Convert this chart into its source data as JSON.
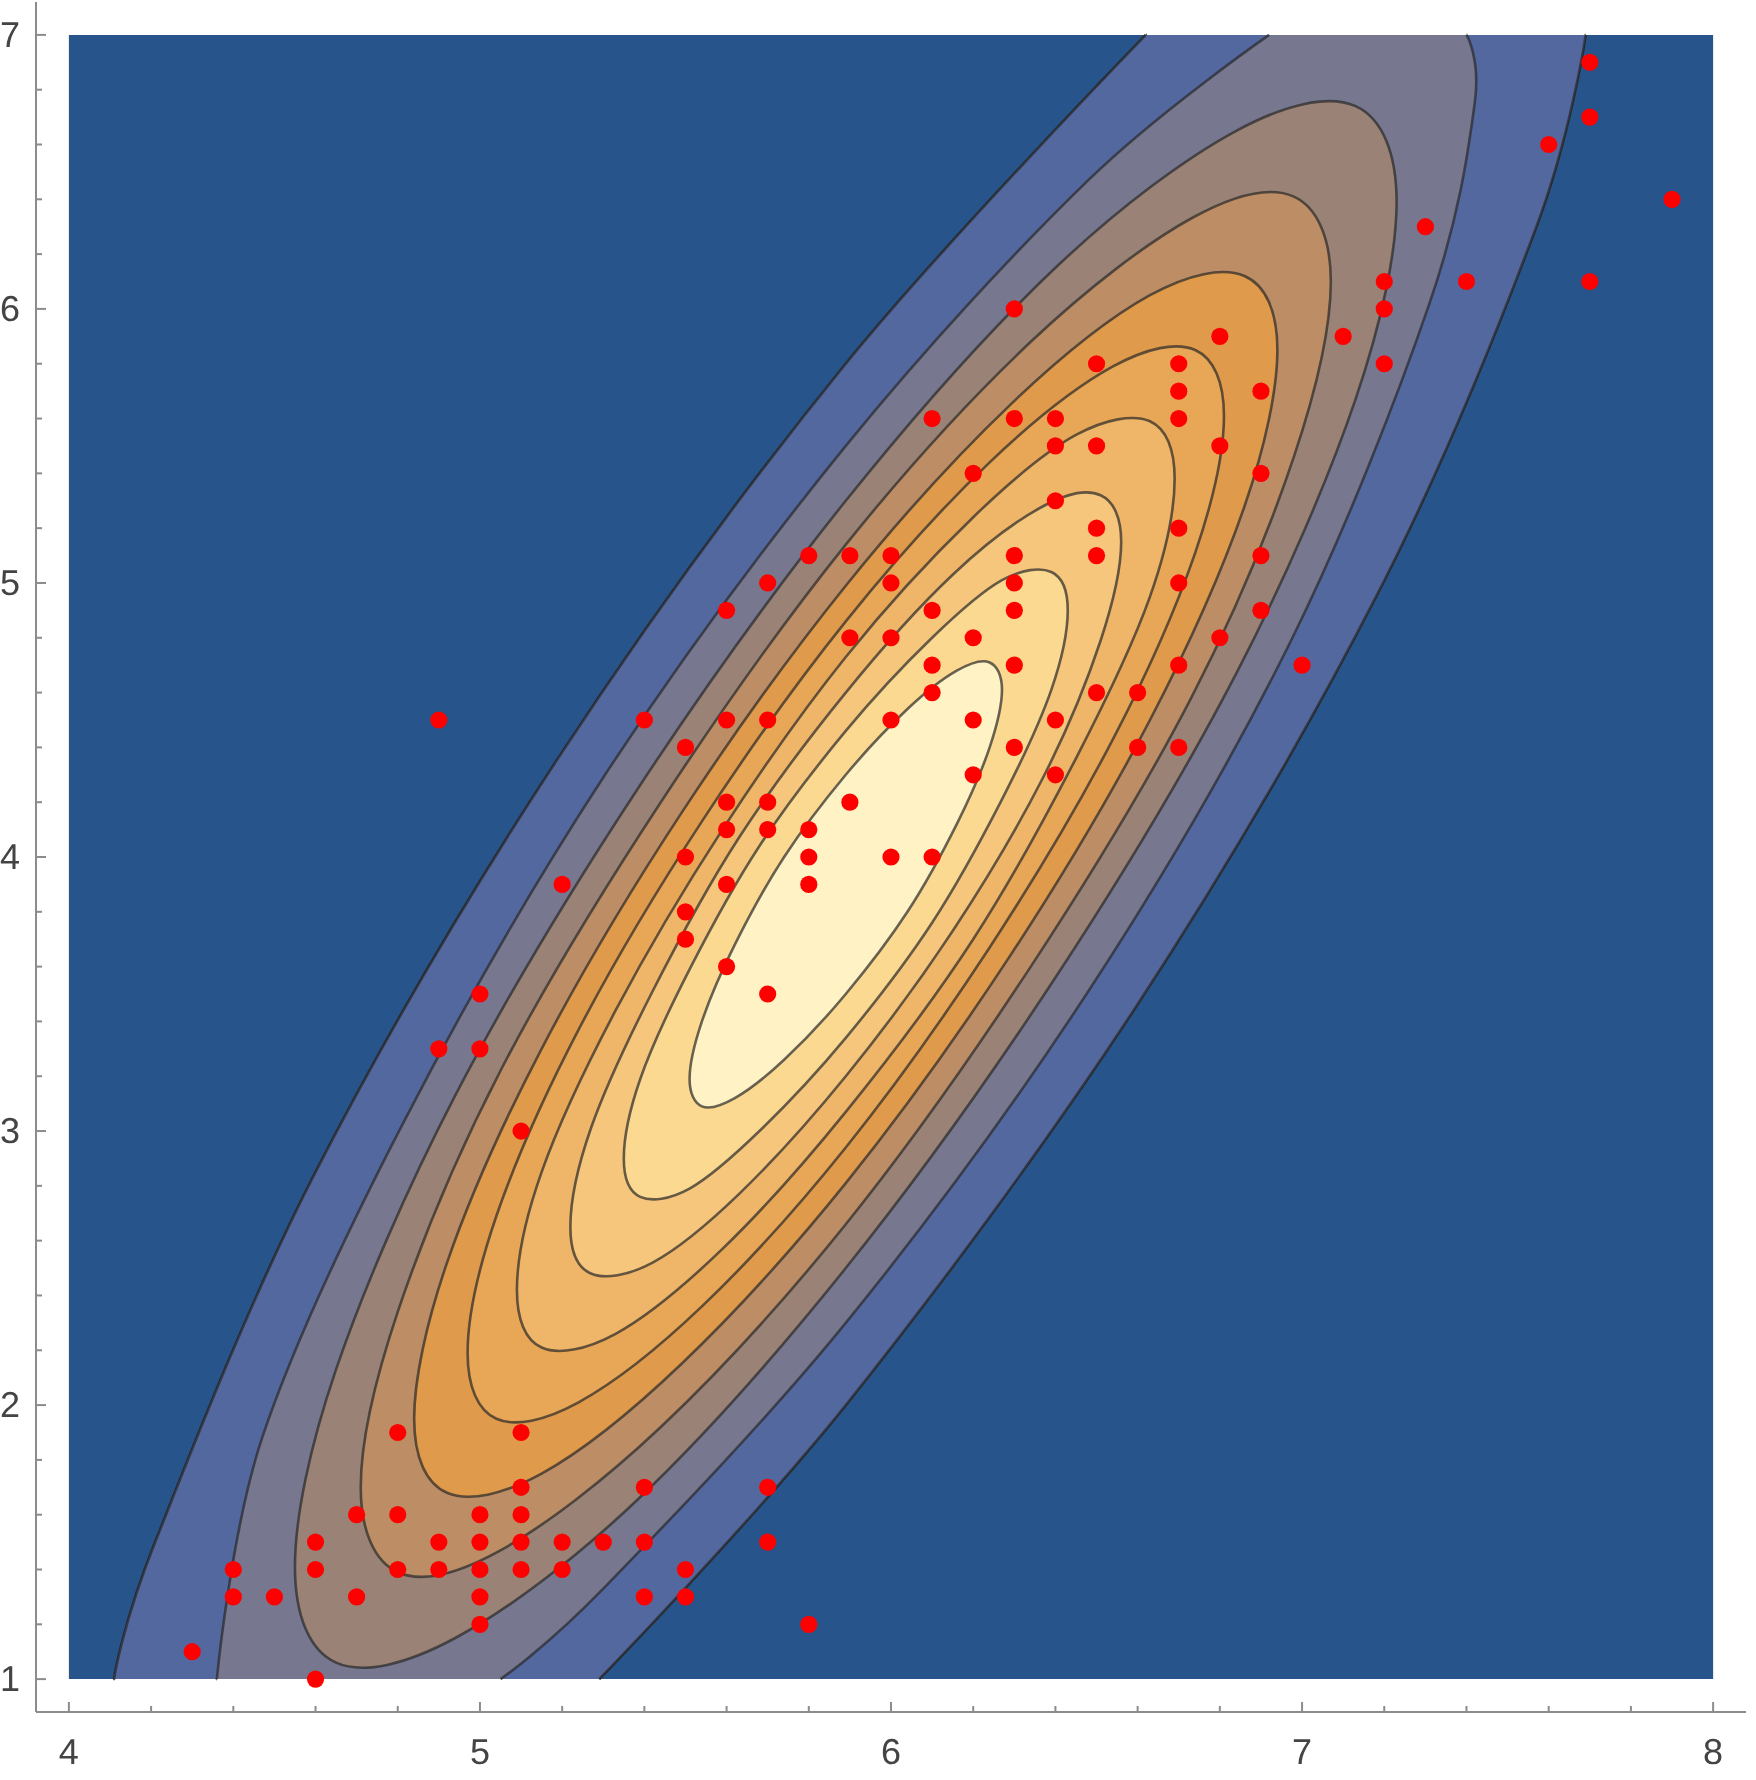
{
  "chart_data": {
    "type": "scatter",
    "xlim": [
      3.92,
      8.08
    ],
    "ylim": [
      0.88,
      7.12
    ],
    "xticks": [
      4,
      {
        "value": 4.2,
        "label": null
      },
      {
        "value": 4.4,
        "label": null
      },
      {
        "value": 4.6,
        "label": null
      },
      {
        "value": 4.8,
        "label": null
      },
      5,
      {
        "value": 5.2,
        "label": null
      },
      {
        "value": 5.4,
        "label": null
      },
      {
        "value": 5.6,
        "label": null
      },
      {
        "value": 5.8,
        "label": null
      },
      6,
      {
        "value": 6.2,
        "label": null
      },
      {
        "value": 6.4,
        "label": null
      },
      {
        "value": 6.6,
        "label": null
      },
      {
        "value": 6.8,
        "label": null
      },
      7,
      {
        "value": 7.2,
        "label": null
      },
      {
        "value": 7.4,
        "label": null
      },
      {
        "value": 7.6,
        "label": null
      },
      {
        "value": 7.8,
        "label": null
      },
      8
    ],
    "yticks": [
      1,
      {
        "value": 1.2,
        "label": null
      },
      {
        "value": 1.4,
        "label": null
      },
      {
        "value": 1.6,
        "label": null
      },
      {
        "value": 1.8,
        "label": null
      },
      2,
      {
        "value": 2.2,
        "label": null
      },
      {
        "value": 2.4,
        "label": null
      },
      {
        "value": 2.6,
        "label": null
      },
      {
        "value": 2.8,
        "label": null
      },
      3,
      {
        "value": 3.2,
        "label": null
      },
      {
        "value": 3.4,
        "label": null
      },
      {
        "value": 3.6,
        "label": null
      },
      {
        "value": 3.8,
        "label": null
      },
      4,
      {
        "value": 4.2,
        "label": null
      },
      {
        "value": 4.4,
        "label": null
      },
      {
        "value": 4.6,
        "label": null
      },
      {
        "value": 4.8,
        "label": null
      },
      5,
      {
        "value": 5.2,
        "label": null
      },
      {
        "value": 5.4,
        "label": null
      },
      {
        "value": 5.6,
        "label": null
      },
      {
        "value": 5.8,
        "label": null
      },
      6,
      {
        "value": 6.2,
        "label": null
      },
      {
        "value": 6.4,
        "label": null
      },
      {
        "value": 6.6,
        "label": null
      },
      {
        "value": 6.8,
        "label": null
      },
      7
    ],
    "series": [
      {
        "type": "area",
        "color": "#27548a",
        "x": [
          4,
          4,
          6.62,
          5.89,
          5.19,
          4.6,
          4.21,
          4.11
        ],
        "values": [
          1,
          7,
          7,
          5.8,
          4.36,
          2.85,
          1.5,
          1.0
        ]
      },
      {
        "type": "area",
        "color": "#27548a",
        "x": [
          5.29,
          8,
          8,
          7.69,
          7.57,
          7.18,
          6.59,
          5.89
        ],
        "values": [
          1,
          1,
          7,
          7,
          6.3,
          4.95,
          3.44,
          2.0
        ]
      },
      {
        "type": "area",
        "color": "#5468a0",
        "x": [
          7.57,
          7.69,
          6.62,
          5.89,
          5.19,
          4.6,
          4.21,
          4.11,
          5.29,
          5.89,
          6.59,
          7.18
        ],
        "values": [
          6.3,
          7.0,
          7.0,
          5.8,
          4.36,
          2.85,
          1.5,
          1.0,
          1.0,
          2.0,
          3.44,
          4.95
        ]
      },
      {
        "type": "area",
        "color": "#777790",
        "x": [
          7.42,
          7.4,
          6.92,
          6.48,
          5.89,
          5.3,
          4.81,
          4.47,
          4.36,
          5.05,
          5.3,
          5.89,
          6.48,
          6.97,
          7.31
        ],
        "values": [
          6.75,
          7.0,
          7.0,
          6.47,
          5.5,
          4.29,
          3.02,
          1.88,
          1.0,
          1.0,
          1.33,
          2.3,
          3.51,
          4.78,
          6.02
        ]
      },
      {
        "type": "area",
        "color": "#9a8376",
        "x": [
          7.23,
          7.13,
          6.84,
          6.4,
          5.89,
          5.38,
          4.94,
          4.65,
          4.55,
          4.65,
          4.94,
          5.38,
          5.89,
          6.4,
          6.84,
          7.13
        ],
        "values": [
          6.39,
          6.74,
          6.65,
          6.15,
          5.3,
          4.24,
          3.13,
          2.13,
          1.41,
          1.06,
          1.15,
          1.65,
          2.5,
          3.56,
          4.67,
          5.67
        ]
      },
      {
        "type": "area",
        "color": "#bd8e65",
        "x": [
          7.07,
          6.98,
          6.73,
          6.34,
          5.89,
          5.44,
          5.05,
          4.8,
          4.71,
          4.8,
          5.05,
          5.44,
          5.89,
          6.34,
          6.73,
          6.98
        ],
        "values": [
          6.1,
          6.41,
          6.33,
          5.88,
          5.14,
          4.2,
          3.22,
          2.34,
          1.7,
          1.39,
          1.47,
          1.92,
          2.66,
          3.6,
          4.58,
          5.46
        ]
      },
      {
        "type": "area",
        "color": "#e09a4b",
        "x": [
          6.94,
          6.86,
          6.63,
          6.29,
          5.89,
          5.49,
          5.15,
          4.92,
          4.84,
          4.92,
          5.15,
          5.49,
          5.89,
          6.29,
          6.63,
          6.86
        ],
        "values": [
          5.85,
          6.12,
          6.05,
          5.65,
          4.99,
          4.16,
          3.3,
          2.52,
          1.95,
          1.68,
          1.75,
          2.15,
          2.81,
          3.64,
          4.5,
          5.28
        ]
      },
      {
        "type": "area",
        "color": "#e8a657",
        "x": [
          6.81,
          6.74,
          6.54,
          6.24,
          5.89,
          5.54,
          5.24,
          5.04,
          4.97,
          5.04,
          5.24,
          5.54,
          5.89,
          6.24,
          6.54,
          6.74
        ],
        "values": [
          5.61,
          5.85,
          5.79,
          5.44,
          4.86,
          4.13,
          3.37,
          2.69,
          2.19,
          1.95,
          2.01,
          2.36,
          2.94,
          3.67,
          4.43,
          5.11
        ]
      },
      {
        "type": "area",
        "color": "#efb66a",
        "x": [
          6.69,
          6.63,
          6.45,
          6.2,
          5.89,
          5.59,
          5.33,
          5.15,
          5.09,
          5.15,
          5.33,
          5.59,
          5.89,
          6.2,
          6.45,
          6.63
        ],
        "values": [
          5.38,
          5.59,
          5.54,
          5.24,
          4.73,
          4.1,
          3.44,
          2.85,
          2.42,
          2.21,
          2.26,
          2.57,
          3.07,
          3.7,
          4.36,
          4.95
        ]
      },
      {
        "type": "area",
        "color": "#f5c67c",
        "x": [
          6.56,
          6.51,
          6.37,
          6.15,
          5.89,
          5.63,
          5.42,
          5.27,
          5.22,
          5.27,
          5.42,
          5.63,
          5.89,
          6.15,
          6.37,
          6.51
        ],
        "values": [
          5.15,
          5.32,
          5.28,
          5.03,
          4.6,
          4.07,
          3.51,
          3.01,
          2.65,
          2.48,
          2.52,
          2.77,
          3.2,
          3.73,
          4.29,
          4.79
        ]
      },
      {
        "type": "area",
        "color": "#fbd990",
        "x": [
          6.43,
          6.39,
          6.27,
          6.1,
          5.89,
          5.68,
          5.51,
          5.39,
          5.35,
          5.39,
          5.51,
          5.68,
          5.89,
          6.1,
          6.27,
          6.39
        ],
        "values": [
          4.9,
          5.04,
          5.01,
          4.8,
          4.46,
          4.04,
          3.59,
          3.19,
          2.9,
          2.76,
          2.79,
          3.0,
          3.34,
          3.76,
          4.21,
          4.61
        ]
      },
      {
        "type": "area",
        "color": "#fff2c4",
        "x": [
          6.27,
          6.24,
          6.16,
          6.04,
          5.89,
          5.74,
          5.62,
          5.54,
          5.51,
          5.54,
          5.62,
          5.74,
          5.89,
          6.04,
          6.16,
          6.24
        ],
        "values": [
          4.61,
          4.71,
          4.68,
          4.54,
          4.3,
          4.0,
          3.68,
          3.4,
          3.19,
          3.09,
          3.12,
          3.26,
          3.5,
          3.8,
          4.12,
          4.4
        ]
      },
      {
        "type": "scatter",
        "color": "#ff0000",
        "marker": "circle",
        "x": [
          5.1,
          4.9,
          4.7,
          4.6,
          5.0,
          5.4,
          4.6,
          5.0,
          4.4,
          4.9,
          5.4,
          4.8,
          4.8,
          4.3,
          5.8,
          5.7,
          5.4,
          5.7,
          5.1,
          4.6,
          5.1,
          4.8,
          5.0,
          5.2,
          5.2,
          4.7,
          5.5,
          5.0,
          5.5,
          4.4,
          5.0,
          4.5,
          5.1,
          5.1,
          5.3,
          7.0,
          6.4,
          6.9,
          5.5,
          6.5,
          5.7,
          6.3,
          4.9,
          6.6,
          5.2,
          5.0,
          5.9,
          6.0,
          6.1,
          5.6,
          6.7,
          5.6,
          5.8,
          6.2,
          5.6,
          5.9,
          6.1,
          6.3,
          6.4,
          6.6,
          6.8,
          6.7,
          6.0,
          5.7,
          5.5,
          5.5,
          5.8,
          6.0,
          5.4,
          6.7,
          6.3,
          5.6,
          5.5,
          6.1,
          5.8,
          5.0,
          5.6,
          5.7,
          6.2,
          5.1,
          5.7,
          6.3,
          5.8,
          7.1,
          6.3,
          6.5,
          7.6,
          4.9,
          7.3,
          6.7,
          7.2,
          6.5,
          6.4,
          6.8,
          5.7,
          6.5,
          7.7,
          7.7,
          6.0,
          6.9,
          5.6,
          6.7,
          7.2,
          6.2,
          6.1,
          6.4,
          7.2,
          7.4,
          7.9,
          6.3,
          6.1,
          7.7,
          6.4,
          6.0,
          6.9,
          6.7,
          6.9,
          6.8,
          6.7,
          6.3,
          6.5,
          6.2,
          5.9
        ],
        "values": [
          1.4,
          1.4,
          1.3,
          1.5,
          1.4,
          1.7,
          1.4,
          1.5,
          1.4,
          1.5,
          1.5,
          1.6,
          1.4,
          1.1,
          1.2,
          1.5,
          1.3,
          1.7,
          1.5,
          1.0,
          1.7,
          1.9,
          1.6,
          1.5,
          1.4,
          1.6,
          1.4,
          1.2,
          1.3,
          1.3,
          1.3,
          1.3,
          1.9,
          1.6,
          1.5,
          4.7,
          4.5,
          4.9,
          4.0,
          4.6,
          4.5,
          4.7,
          3.3,
          4.6,
          3.9,
          3.5,
          4.2,
          4.0,
          4.7,
          3.6,
          4.4,
          4.5,
          4.1,
          4.5,
          3.9,
          4.8,
          4.0,
          4.9,
          4.3,
          4.4,
          4.8,
          5.0,
          4.5,
          3.5,
          3.8,
          3.7,
          3.9,
          5.1,
          4.5,
          4.7,
          4.4,
          4.1,
          4.4,
          4.6,
          4.0,
          3.3,
          4.2,
          4.2,
          4.3,
          3.0,
          4.1,
          6.0,
          5.1,
          5.9,
          5.6,
          5.8,
          6.6,
          4.5,
          6.3,
          5.8,
          6.1,
          5.1,
          5.3,
          5.5,
          5.0,
          5.5,
          6.7,
          6.9,
          5.0,
          5.7,
          4.9,
          5.7,
          6.0,
          4.8,
          4.9,
          5.6,
          5.8,
          6.1,
          6.4,
          5.1,
          5.6,
          6.1,
          5.5,
          4.8,
          5.4,
          5.6,
          5.1,
          5.9,
          5.2,
          5.0,
          5.2,
          5.4,
          5.1
        ]
      }
    ]
  }
}
